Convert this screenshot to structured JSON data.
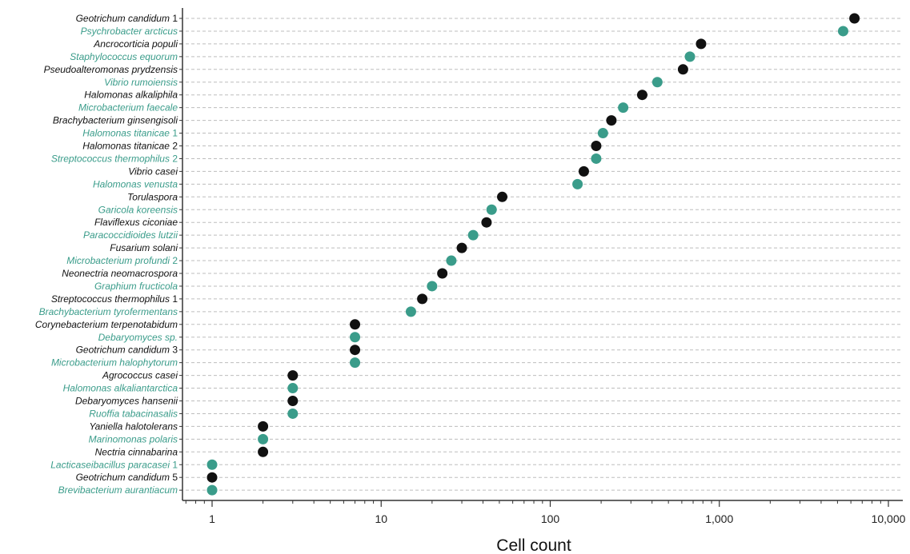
{
  "colors": {
    "black_series": "#111111",
    "teal_series": "#3a9c8a",
    "gridline": "#bdbdbd",
    "axis": "#333333"
  },
  "chart_data": {
    "type": "scatter",
    "xlabel": "Cell count",
    "x_scale": "log",
    "xlim": [
      0.7,
      10000
    ],
    "grid": "horizontal dashed",
    "x_ticks": [
      {
        "value": 1,
        "label": "1"
      },
      {
        "value": 10,
        "label": "10"
      },
      {
        "value": 100,
        "label": "100"
      },
      {
        "value": 1000,
        "label": "1,000"
      },
      {
        "value": 10000,
        "label": "10,000"
      }
    ],
    "points": [
      {
        "label": "Geotrichum candidum 1",
        "value": 6300,
        "color": "black"
      },
      {
        "label": "Psychrobacter arcticus",
        "value": 5400,
        "color": "teal"
      },
      {
        "label": "Ancrocorticia populi",
        "value": 780,
        "color": "black"
      },
      {
        "label": "Staphylococcus equorum",
        "value": 670,
        "color": "teal"
      },
      {
        "label": "Pseudoalteromonas prydzensis",
        "value": 610,
        "color": "black"
      },
      {
        "label": "Vibrio rumoiensis",
        "value": 430,
        "color": "teal"
      },
      {
        "label": "Halomonas alkaliphila",
        "value": 350,
        "color": "black"
      },
      {
        "label": "Microbacterium faecale",
        "value": 270,
        "color": "teal"
      },
      {
        "label": "Brachybacterium ginsengisoli",
        "value": 230,
        "color": "black"
      },
      {
        "label": "Halomonas titanicae 1",
        "value": 205,
        "color": "teal"
      },
      {
        "label": "Halomonas titanicae 2",
        "value": 187,
        "color": "black"
      },
      {
        "label": "Streptococcus thermophilus 2",
        "value": 187,
        "color": "teal"
      },
      {
        "label": "Vibrio casei",
        "value": 158,
        "color": "black"
      },
      {
        "label": "Halomonas venusta",
        "value": 145,
        "color": "teal"
      },
      {
        "label": "Torulaspora",
        "value": 52,
        "color": "black"
      },
      {
        "label": "Garicola koreensis",
        "value": 45,
        "color": "teal"
      },
      {
        "label": "Flaviflexus ciconiae",
        "value": 42,
        "color": "black"
      },
      {
        "label": "Paracoccidioides lutzii",
        "value": 35,
        "color": "teal"
      },
      {
        "label": "Fusarium solani",
        "value": 30,
        "color": "black"
      },
      {
        "label": "Microbacterium profundi 2",
        "value": 26,
        "color": "teal"
      },
      {
        "label": "Neonectria neomacrospora",
        "value": 23,
        "color": "black"
      },
      {
        "label": "Graphium fructicola",
        "value": 20,
        "color": "teal"
      },
      {
        "label": "Streptococcus thermophilus 1",
        "value": 17.5,
        "color": "black"
      },
      {
        "label": "Brachybacterium tyrofermentans",
        "value": 15,
        "color": "teal"
      },
      {
        "label": "Corynebacterium terpenotabidum",
        "value": 7,
        "color": "black"
      },
      {
        "label": "Debaryomyces sp.",
        "value": 7,
        "color": "teal"
      },
      {
        "label": "Geotrichum candidum 3",
        "value": 7,
        "color": "black"
      },
      {
        "label": "Microbacterium halophytorum",
        "value": 7,
        "color": "teal"
      },
      {
        "label": "Agrococcus casei",
        "value": 3,
        "color": "black"
      },
      {
        "label": "Halomonas alkaliantarctica",
        "value": 3,
        "color": "teal"
      },
      {
        "label": "Debaryomyces hansenii",
        "value": 3,
        "color": "black"
      },
      {
        "label": "Ruoffia tabacinasalis",
        "value": 3,
        "color": "teal"
      },
      {
        "label": "Yaniella halotolerans",
        "value": 2,
        "color": "black"
      },
      {
        "label": "Marinomonas polaris",
        "value": 2,
        "color": "teal"
      },
      {
        "label": "Nectria cinnabarina",
        "value": 2,
        "color": "black"
      },
      {
        "label": "Lacticaseibacillus paracasei 1",
        "value": 1,
        "color": "teal"
      },
      {
        "label": "Geotrichum candidum 5",
        "value": 1,
        "color": "black"
      },
      {
        "label": "Brevibacterium aurantiacum",
        "value": 1,
        "color": "teal"
      }
    ]
  }
}
